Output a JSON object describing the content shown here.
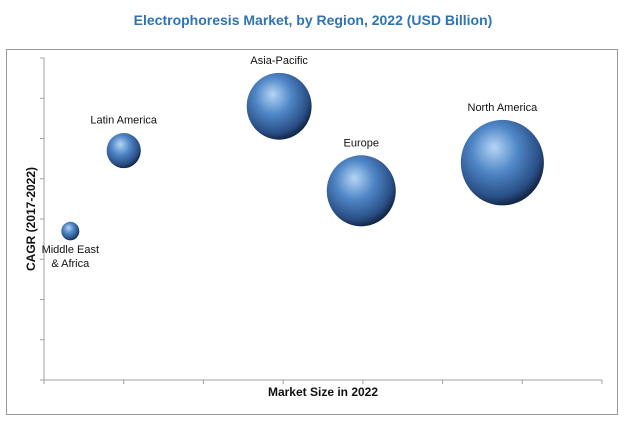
{
  "chart_data": {
    "type": "bubble",
    "title": "Electrophoresis Market, by Region, 2022 (USD Billion)",
    "xlabel": "Market Size in 2022",
    "ylabel": "CAGR (2017-2022)",
    "xlim": [
      0,
      7
    ],
    "ylim": [
      0,
      8
    ],
    "grid": false,
    "tick_labels_shown": false,
    "series": [
      {
        "name": "Middle East & Africa",
        "label_lines": [
          "Middle East",
          "& Africa"
        ],
        "label_position": "below",
        "x": 0.33,
        "y": 3.7,
        "size": 1.0
      },
      {
        "name": "Latin America",
        "label_lines": [
          "Latin America"
        ],
        "label_position": "above",
        "x": 1.0,
        "y": 5.7,
        "size": 3.6
      },
      {
        "name": "Asia-Pacific",
        "label_lines": [
          "Asia-Pacific"
        ],
        "label_position": "above",
        "x": 2.95,
        "y": 6.8,
        "size": 13.0
      },
      {
        "name": "Europe",
        "label_lines": [
          "Europe"
        ],
        "label_position": "above",
        "x": 3.98,
        "y": 4.7,
        "size": 14.7
      },
      {
        "name": "North America",
        "label_lines": [
          "North America"
        ],
        "label_position": "above",
        "x": 5.75,
        "y": 5.4,
        "size": 21.3
      }
    ],
    "colors": {
      "title": "#2e74b5",
      "bubble_light": "#a9cdf2",
      "bubble_mid": "#4a7fc0",
      "bubble_dark": "#1d3a66",
      "axis": "#a0a0a0"
    }
  }
}
